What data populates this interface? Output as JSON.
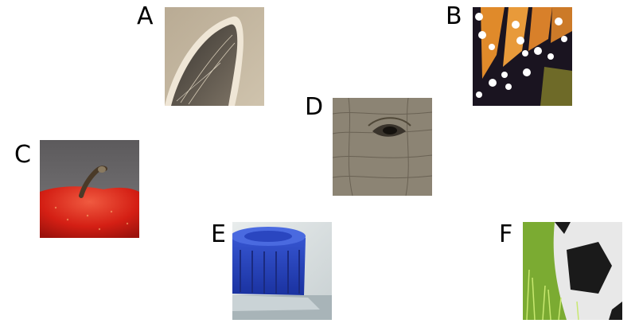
{
  "panels": [
    {
      "letter": "A",
      "subject": "animal-ear"
    },
    {
      "letter": "B",
      "subject": "butterfly-wing"
    },
    {
      "letter": "C",
      "subject": "apple-stem"
    },
    {
      "letter": "D",
      "subject": "elephant-eye"
    },
    {
      "letter": "E",
      "subject": "bottle-cap"
    },
    {
      "letter": "F",
      "subject": "soccer-ball"
    }
  ]
}
